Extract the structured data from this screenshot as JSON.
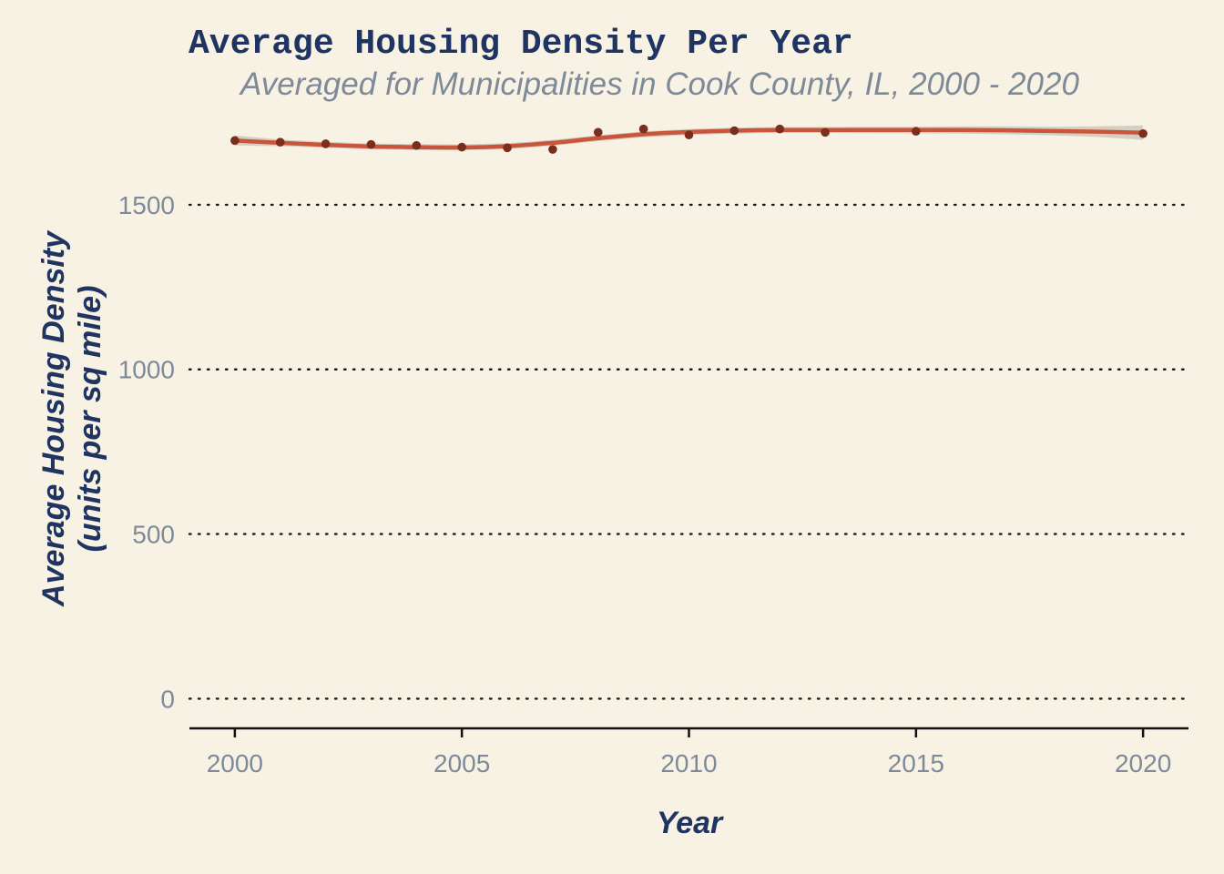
{
  "colors": {
    "background": "#f7f2e4",
    "title": "#1f3460",
    "subtitle": "#7f8a99",
    "tick": "#7f8a99",
    "grid": "#1a1a1a",
    "axis": "#111111",
    "line": "#c9563c",
    "point": "#7a2e1e",
    "band": "#cfc9bb"
  },
  "chart_data": {
    "type": "scatter",
    "title": "Average Housing Density Per Year",
    "subtitle": "Averaged for Municipalities in Cook County, IL, 2000 - 2020",
    "xlabel": "Year",
    "ylabel": [
      "Average Housing Density",
      "(units per sq mile)"
    ],
    "xlim": [
      1999,
      2021
    ],
    "ylim": [
      -90,
      1790
    ],
    "x_ticks": [
      2000,
      2005,
      2010,
      2015,
      2020
    ],
    "y_ticks": [
      0,
      500,
      1000,
      1500
    ],
    "grid": "horizontal-dotted",
    "legend": "none",
    "points": [
      {
        "x": 2000,
        "y": 1695
      },
      {
        "x": 2001,
        "y": 1690
      },
      {
        "x": 2002,
        "y": 1685
      },
      {
        "x": 2003,
        "y": 1683
      },
      {
        "x": 2004,
        "y": 1680
      },
      {
        "x": 2005,
        "y": 1675
      },
      {
        "x": 2006,
        "y": 1673
      },
      {
        "x": 2007,
        "y": 1668
      },
      {
        "x": 2008,
        "y": 1720
      },
      {
        "x": 2009,
        "y": 1730
      },
      {
        "x": 2010,
        "y": 1712
      },
      {
        "x": 2011,
        "y": 1725
      },
      {
        "x": 2012,
        "y": 1730
      },
      {
        "x": 2013,
        "y": 1720
      },
      {
        "x": 2015,
        "y": 1723
      },
      {
        "x": 2020,
        "y": 1716
      }
    ],
    "smooth": [
      {
        "x": 2000,
        "y": 1695,
        "lo": 1680,
        "hi": 1710
      },
      {
        "x": 2001,
        "y": 1688,
        "lo": 1678,
        "hi": 1698
      },
      {
        "x": 2002,
        "y": 1682,
        "lo": 1673,
        "hi": 1691
      },
      {
        "x": 2003,
        "y": 1677,
        "lo": 1668,
        "hi": 1686
      },
      {
        "x": 2004,
        "y": 1675,
        "lo": 1666,
        "hi": 1684
      },
      {
        "x": 2005,
        "y": 1674,
        "lo": 1665,
        "hi": 1683
      },
      {
        "x": 2006,
        "y": 1678,
        "lo": 1669,
        "hi": 1687
      },
      {
        "x": 2007,
        "y": 1688,
        "lo": 1679,
        "hi": 1697
      },
      {
        "x": 2008,
        "y": 1702,
        "lo": 1693,
        "hi": 1711
      },
      {
        "x": 2009,
        "y": 1714,
        "lo": 1705,
        "hi": 1723
      },
      {
        "x": 2010,
        "y": 1721,
        "lo": 1712,
        "hi": 1730
      },
      {
        "x": 2011,
        "y": 1725,
        "lo": 1716,
        "hi": 1734
      },
      {
        "x": 2012,
        "y": 1727,
        "lo": 1718,
        "hi": 1736
      },
      {
        "x": 2013,
        "y": 1727,
        "lo": 1718,
        "hi": 1736
      },
      {
        "x": 2014,
        "y": 1727,
        "lo": 1717,
        "hi": 1737
      },
      {
        "x": 2015,
        "y": 1727,
        "lo": 1717,
        "hi": 1737
      },
      {
        "x": 2016,
        "y": 1727,
        "lo": 1716,
        "hi": 1738
      },
      {
        "x": 2017,
        "y": 1726,
        "lo": 1714,
        "hi": 1738
      },
      {
        "x": 2018,
        "y": 1724,
        "lo": 1711,
        "hi": 1737
      },
      {
        "x": 2019,
        "y": 1722,
        "lo": 1706,
        "hi": 1738
      },
      {
        "x": 2020,
        "y": 1719,
        "lo": 1697,
        "hi": 1741
      }
    ]
  }
}
